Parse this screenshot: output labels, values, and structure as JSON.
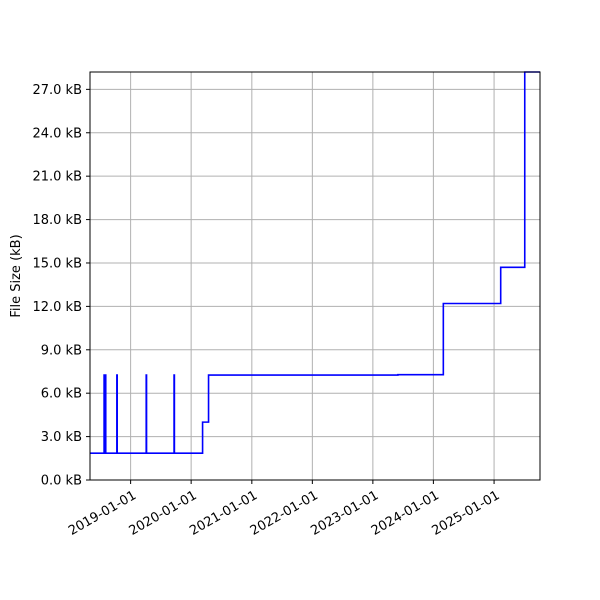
{
  "chart_data": {
    "type": "line",
    "title": "",
    "xlabel": "",
    "ylabel": "File Size (kB)",
    "grid": true,
    "line_style": "step",
    "colors": {
      "series": "#0000ff",
      "grid": "#b0b0b0",
      "axes": "#000000"
    },
    "xlim": [
      "2018-05-01",
      "2025-10-05"
    ],
    "ylim": [
      0,
      28.2
    ],
    "x_ticks": [
      {
        "value": "2019-01-01",
        "label": "2019-01-01"
      },
      {
        "value": "2020-01-01",
        "label": "2020-01-01"
      },
      {
        "value": "2021-01-01",
        "label": "2021-01-01"
      },
      {
        "value": "2022-01-01",
        "label": "2022-01-01"
      },
      {
        "value": "2023-01-01",
        "label": "2023-01-01"
      },
      {
        "value": "2024-01-01",
        "label": "2024-01-01"
      },
      {
        "value": "2025-01-01",
        "label": "2025-01-01"
      }
    ],
    "y_ticks": [
      {
        "value": 0,
        "label": "0.0 kB"
      },
      {
        "value": 3,
        "label": "3.0 kB"
      },
      {
        "value": 6,
        "label": "6.0 kB"
      },
      {
        "value": 9,
        "label": "9.0 kB"
      },
      {
        "value": 12,
        "label": "12.0 kB"
      },
      {
        "value": 15,
        "label": "15.0 kB"
      },
      {
        "value": 18,
        "label": "18.0 kB"
      },
      {
        "value": 21,
        "label": "21.0 kB"
      },
      {
        "value": 24,
        "label": "24.0 kB"
      },
      {
        "value": 27,
        "label": "27.0 kB"
      }
    ],
    "series": [
      {
        "x": [
          "2018-05-01",
          "2018-07-25",
          "2018-07-27",
          "2018-07-29",
          "2018-07-31",
          "2018-08-02",
          "2018-08-04",
          "2018-08-06",
          "2018-10-10",
          "2018-10-12",
          "2019-04-05",
          "2019-04-07",
          "2019-09-20",
          "2019-09-22",
          "2020-03-10",
          "2020-04-15",
          "2020-05-15",
          "2023-06-01",
          "2024-03-01",
          "2025-02-10",
          "2025-07-05",
          "2025-10-05"
        ],
        "y": [
          1.85,
          7.25,
          1.85,
          7.25,
          1.85,
          7.25,
          1.85,
          1.85,
          7.25,
          1.85,
          7.25,
          1.85,
          7.25,
          1.85,
          4.0,
          7.25,
          7.25,
          7.28,
          12.2,
          14.7,
          28.2,
          28.2
        ]
      }
    ]
  }
}
